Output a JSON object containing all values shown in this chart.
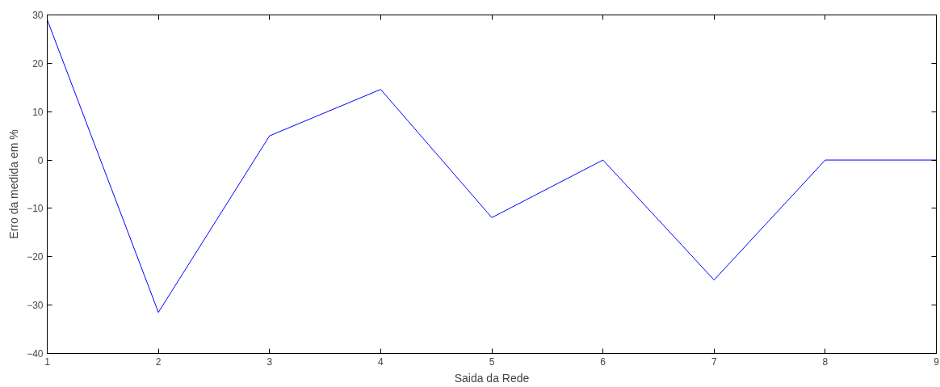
{
  "chart_data": {
    "type": "line",
    "xlabel": "Saida da Rede",
    "ylabel": "Erro da medida em %",
    "x": [
      1,
      2,
      3,
      4,
      5,
      6,
      7,
      8,
      9
    ],
    "series": [
      {
        "color": "#0000ff",
        "values": [
          29,
          -31.5,
          5,
          14.6,
          -11.9,
          0,
          -24.8,
          0,
          0
        ]
      }
    ],
    "xlim": [
      1,
      9
    ],
    "ylim": [
      -40,
      30
    ],
    "xticks": [
      1,
      2,
      3,
      4,
      5,
      6,
      7,
      8,
      9
    ],
    "yticks": [
      -40,
      -30,
      -20,
      -10,
      0,
      10,
      20,
      30
    ],
    "grid": false,
    "marker": "none",
    "line_style": "solid"
  }
}
